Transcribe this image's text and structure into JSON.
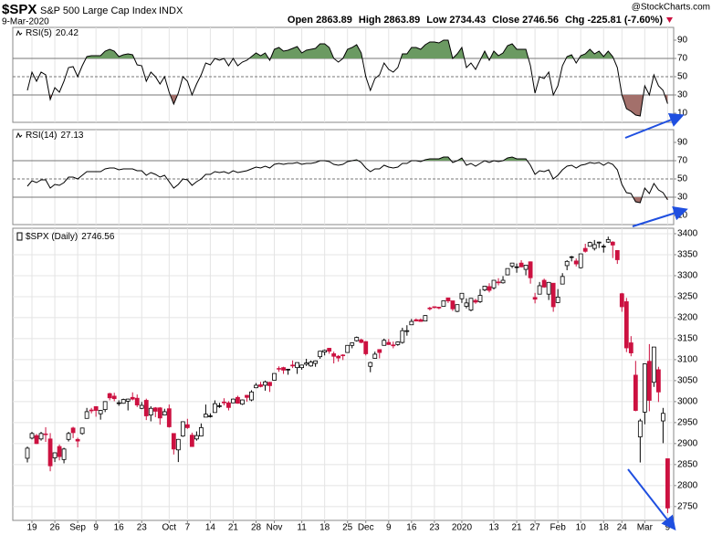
{
  "chart_data": {
    "type": "candlestick",
    "symbol": "$SPX",
    "name": "S&P 500 Large Cap Index",
    "exchange": "INDX",
    "date": "9-Mar-2020",
    "source": "@StockCharts.com",
    "quote_labels": {
      "open": "Open",
      "high": "High",
      "low": "Low",
      "close": "Close",
      "change": "Chg"
    },
    "change": "-225.81 (-7.60%)",
    "series_label": "$SPX (Daily)",
    "up_color": "#000000",
    "down_color": "#cc1140",
    "grid": true,
    "ylim": [
      2717,
      3413
    ],
    "yticks": [
      2750,
      2800,
      2850,
      2900,
      2950,
      3000,
      3050,
      3100,
      3150,
      3200,
      3250,
      3300,
      3350,
      3400
    ],
    "xticks": [
      {
        "value": 1,
        "label": "19"
      },
      {
        "value": 6,
        "label": "26"
      },
      {
        "value": 11,
        "label": "Sep"
      },
      {
        "value": 15,
        "label": "9"
      },
      {
        "value": 20,
        "label": "16"
      },
      {
        "value": 25,
        "label": "23"
      },
      {
        "value": 31,
        "label": "Oct"
      },
      {
        "value": 35,
        "label": "7"
      },
      {
        "value": 40,
        "label": "14"
      },
      {
        "value": 45,
        "label": "21"
      },
      {
        "value": 50,
        "label": "28"
      },
      {
        "value": 54,
        "label": "Nov"
      },
      {
        "value": 60,
        "label": "11"
      },
      {
        "value": 65,
        "label": "18"
      },
      {
        "value": 70,
        "label": "25"
      },
      {
        "value": 74,
        "label": "Dec"
      },
      {
        "value": 79,
        "label": "9"
      },
      {
        "value": 84,
        "label": "16"
      },
      {
        "value": 89,
        "label": "23"
      },
      {
        "value": 95,
        "label": "2020"
      },
      {
        "value": 102,
        "label": "13"
      },
      {
        "value": 107,
        "label": "21"
      },
      {
        "value": 111,
        "label": "27"
      },
      {
        "value": 116,
        "label": "Feb"
      },
      {
        "value": 121,
        "label": "10"
      },
      {
        "value": 126,
        "label": "18"
      },
      {
        "value": 130,
        "label": "24"
      },
      {
        "value": 135,
        "label": "Mar"
      },
      {
        "value": 140,
        "label": "9"
      }
    ],
    "open": [
      2865,
      2913,
      2919,
      2911,
      2923,
      2911,
      2866,
      2893,
      2862,
      2910,
      2937,
      2910,
      2924,
      2960,
      2980,
      2988,
      2971,
      2981,
      3019,
      3013,
      2996,
      2996,
      3001,
      3010,
      3008,
      2984,
      3003,
      2968,
      2985,
      2985,
      2968,
      2983,
      2924,
      2885,
      2918,
      2945,
      2920,
      2911,
      2918,
      2963,
      2966,
      2974,
      2990,
      2999,
      2997,
      2997,
      3010,
      2994,
      3015,
      3004,
      3033,
      3040,
      3039,
      3046,
      3051,
      3079,
      3081,
      3076,
      3087,
      3081,
      3081,
      3089,
      3085,
      3091,
      3107,
      3118,
      3127,
      3114,
      3108,
      3111,
      3117,
      3134,
      3145,
      3147,
      3143,
      3084,
      3103,
      3124,
      3134,
      3141,
      3135,
      3136,
      3141,
      3167,
      3183,
      3195,
      3195,
      3192,
      3223,
      3226,
      3225,
      3227,
      3247,
      3240,
      3215,
      3245,
      3227,
      3218,
      3241,
      3238,
      3266,
      3274,
      3271,
      3285,
      3283,
      3302,
      3323,
      3321,
      3330,
      3315,
      3333,
      3248,
      3256,
      3289,
      3256,
      3282,
      3236,
      3280,
      3324,
      3344,
      3335,
      3319,
      3365,
      3370,
      3365,
      3378,
      3370,
      3380,
      3380,
      3360,
      3257,
      3238,
      3140,
      3063,
      2916,
      2975,
      3096,
      3046,
      3076,
      2954,
      2863.89
    ],
    "high": [
      2893,
      2928,
      2923,
      2928,
      2939,
      2925,
      2879,
      2898,
      2890,
      2928,
      2940,
      2914,
      2938,
      2985,
      2985,
      2989,
      2980,
      3001,
      3021,
      3021,
      3003,
      3007,
      3007,
      3022,
      3017,
      2999,
      3007,
      2989,
      2987,
      2987,
      2983,
      2993,
      2924,
      2911,
      2953,
      2959,
      2926,
      2929,
      2948,
      2993,
      2972,
      3003,
      2997,
      3008,
      3001,
      3007,
      3014,
      3005,
      3016,
      3027,
      3044,
      3047,
      3050,
      3047,
      3067,
      3084,
      3083,
      3078,
      3098,
      3093,
      3088,
      3102,
      3098,
      3098,
      3121,
      3124,
      3128,
      3119,
      3111,
      3113,
      3134,
      3140,
      3155,
      3150,
      3144,
      3095,
      3119,
      3124,
      3150,
      3149,
      3143,
      3143,
      3176,
      3182,
      3197,
      3198,
      3198,
      3206,
      3226,
      3227,
      3226,
      3240,
      3247,
      3240,
      3231,
      3258,
      3246,
      3247,
      3245,
      3268,
      3276,
      3282,
      3289,
      3294,
      3299,
      3317,
      3330,
      3329,
      3337,
      3326,
      3334,
      3259,
      3285,
      3293,
      3285,
      3282,
      3268,
      3306,
      3337,
      3347,
      3341,
      3352,
      3376,
      3381,
      3385,
      3381,
      3375,
      3393,
      3382,
      3360,
      3259,
      3247,
      3156,
      3097,
      2959,
      3091,
      3137,
      3130,
      3083,
      2985,
      2863.89
    ],
    "low": [
      2855,
      2910,
      2899,
      2907,
      2904,
      2834,
      2856,
      2860,
      2853,
      2905,
      2913,
      2891,
      2921,
      2960,
      2972,
      2964,
      2957,
      2975,
      3003,
      3001,
      2990,
      2995,
      2979,
      3003,
      2987,
      2982,
      2956,
      2953,
      2963,
      2945,
      2967,
      2938,
      2874,
      2856,
      2916,
      2935,
      2892,
      2907,
      2917,
      2963,
      2962,
      2974,
      2985,
      2991,
      2979,
      2997,
      2995,
      2992,
      3000,
      3001,
      3032,
      3034,
      3026,
      3023,
      3051,
      3071,
      3066,
      3064,
      3080,
      3066,
      3076,
      3085,
      3083,
      3083,
      3102,
      3110,
      3114,
      3091,
      3095,
      3099,
      3117,
      3127,
      3143,
      3139,
      3110,
      3070,
      3102,
      3103,
      3134,
      3135,
      3127,
      3133,
      3138,
      3157,
      3183,
      3191,
      3191,
      3192,
      3217,
      3222,
      3220,
      3227,
      3235,
      3216,
      3213,
      3235,
      3222,
      3215,
      3233,
      3235,
      3263,
      3260,
      3267,
      3277,
      3281,
      3301,
      3318,
      3307,
      3320,
      3301,
      3281,
      3234,
      3256,
      3271,
      3242,
      3214,
      3235,
      3280,
      3313,
      3334,
      3322,
      3317,
      3355,
      3369,
      3360,
      3366,
      3355,
      3378,
      3342,
      3328,
      3214,
      3118,
      3108,
      2977,
      2855,
      2946,
      2977,
      3035,
      2999,
      2901,
      2734.43
    ],
    "close": [
      2889,
      2924,
      2900,
      2924,
      2922,
      2847,
      2878,
      2869,
      2887,
      2924,
      2926,
      2906,
      2937,
      2976,
      2978,
      2979,
      2979,
      3000,
      3009,
      3007,
      2997,
      3005,
      3006,
      3006,
      2992,
      2991,
      2966,
      2984,
      2977,
      2961,
      2976,
      2940,
      2887,
      2910,
      2952,
      2938,
      2893,
      2919,
      2938,
      2970,
      2966,
      2995,
      2990,
      2997,
      2986,
      3006,
      2996,
      3004,
      3010,
      3023,
      3039,
      3036,
      3047,
      3038,
      3067,
      3078,
      3075,
      3077,
      3085,
      3093,
      3087,
      3092,
      3094,
      3097,
      3120,
      3122,
      3120,
      3108,
      3104,
      3110,
      3134,
      3140,
      3153,
      3141,
      3114,
      3093,
      3113,
      3117,
      3146,
      3136,
      3133,
      3142,
      3169,
      3169,
      3191,
      3192,
      3191,
      3205,
      3221,
      3224,
      3223,
      3240,
      3240,
      3221,
      3231,
      3258,
      3235,
      3246,
      3237,
      3253,
      3275,
      3265,
      3289,
      3283,
      3289,
      3317,
      3330,
      3321,
      3321,
      3325,
      3295,
      3244,
      3276,
      3273,
      3284,
      3226,
      3249,
      3298,
      3334,
      3345,
      3328,
      3352,
      3358,
      3379,
      3374,
      3380,
      3370,
      3386,
      3373,
      3338,
      3226,
      3128,
      3116,
      2979,
      2954,
      3090,
      3003,
      3130,
      3023,
      2972,
      2746.56
    ],
    "indicators": [
      {
        "name": "RSI(5)",
        "color": "#000000",
        "overbought_color": "#6b9a62",
        "oversold_color": "#a3706b",
        "ylim": [
          0,
          104
        ],
        "yticks": [
          10,
          30,
          50,
          70,
          90
        ],
        "levels": [
          30,
          50,
          70
        ],
        "values": [
          35,
          55,
          45,
          55,
          52,
          25,
          38,
          33,
          45,
          60,
          61,
          50,
          62,
          72,
          73,
          73,
          73,
          78,
          80,
          78,
          72,
          74,
          75,
          74,
          63,
          62,
          45,
          55,
          50,
          42,
          50,
          33,
          20,
          32,
          50,
          45,
          30,
          42,
          52,
          65,
          63,
          70,
          68,
          70,
          62,
          70,
          62,
          66,
          68,
          72,
          76,
          73,
          76,
          68,
          80,
          82,
          78,
          79,
          81,
          83,
          76,
          79,
          80,
          81,
          86,
          86,
          82,
          70,
          66,
          70,
          80,
          82,
          85,
          76,
          50,
          35,
          48,
          52,
          65,
          58,
          55,
          60,
          75,
          75,
          82,
          82,
          80,
          85,
          88,
          88,
          87,
          90,
          90,
          70,
          75,
          82,
          60,
          65,
          58,
          68,
          78,
          68,
          78,
          73,
          76,
          84,
          86,
          80,
          80,
          80,
          62,
          32,
          50,
          48,
          55,
          30,
          40,
          62,
          72,
          74,
          65,
          73,
          75,
          80,
          75,
          78,
          72,
          78,
          72,
          60,
          30,
          15,
          12,
          8,
          7,
          40,
          30,
          52,
          40,
          35,
          20.42
        ]
      },
      {
        "name": "RSI(14)",
        "color": "#000000",
        "overbought_color": "#6b9a62",
        "oversold_color": "#a3706b",
        "ylim": [
          0,
          104
        ],
        "yticks": [
          10,
          30,
          50,
          70,
          90
        ],
        "levels": [
          30,
          50,
          70
        ],
        "values": [
          42,
          48,
          46,
          49,
          49,
          40,
          44,
          43,
          46,
          52,
          52,
          50,
          54,
          58,
          58,
          58,
          58,
          61,
          62,
          62,
          60,
          61,
          61,
          61,
          59,
          59,
          54,
          57,
          55,
          52,
          54,
          47,
          40,
          44,
          50,
          49,
          43,
          47,
          50,
          55,
          55,
          58,
          57,
          58,
          56,
          59,
          57,
          58,
          59,
          61,
          63,
          62,
          64,
          62,
          66,
          67,
          66,
          67,
          67,
          68,
          66,
          67,
          67,
          68,
          70,
          70,
          69,
          66,
          65,
          66,
          69,
          70,
          71,
          68,
          62,
          58,
          61,
          61,
          65,
          63,
          62,
          63,
          67,
          67,
          70,
          70,
          69,
          71,
          72,
          72,
          72,
          74,
          74,
          68,
          70,
          73,
          65,
          67,
          64,
          67,
          70,
          68,
          70,
          69,
          70,
          73,
          74,
          72,
          72,
          72,
          65,
          55,
          59,
          58,
          60,
          50,
          54,
          60,
          64,
          65,
          62,
          65,
          66,
          68,
          67,
          68,
          65,
          68,
          66,
          60,
          44,
          35,
          34,
          25,
          24,
          40,
          34,
          45,
          38,
          35,
          27.13
        ]
      }
    ]
  }
}
